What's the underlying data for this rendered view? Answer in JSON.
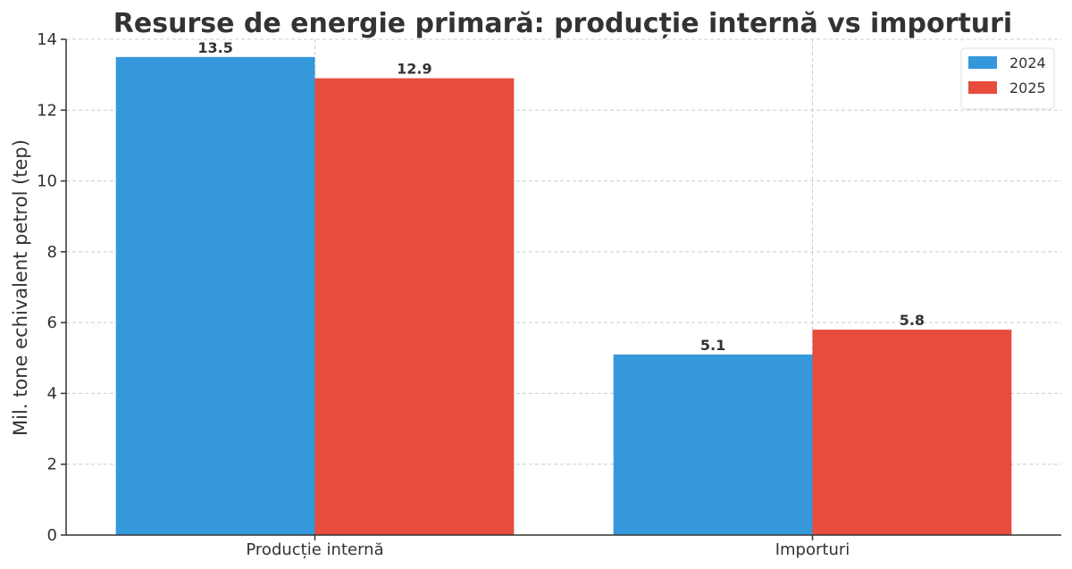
{
  "chart_data": {
    "type": "bar",
    "title": "Resurse de energie primară: producție internă vs importuri",
    "xlabel": "",
    "ylabel": "Mil. tone echivalent petrol (tep)",
    "categories": [
      "Producție internă",
      "Importuri"
    ],
    "series": [
      {
        "name": "2024",
        "values": [
          13.5,
          5.1
        ],
        "color": "#3498db"
      },
      {
        "name": "2025",
        "values": [
          12.9,
          5.8
        ],
        "color": "#e74c3c"
      }
    ],
    "ylim": [
      0,
      14
    ],
    "yticks": [
      0,
      2,
      4,
      6,
      8,
      10,
      12,
      14
    ],
    "grid": true,
    "legend_position": "top-right"
  }
}
